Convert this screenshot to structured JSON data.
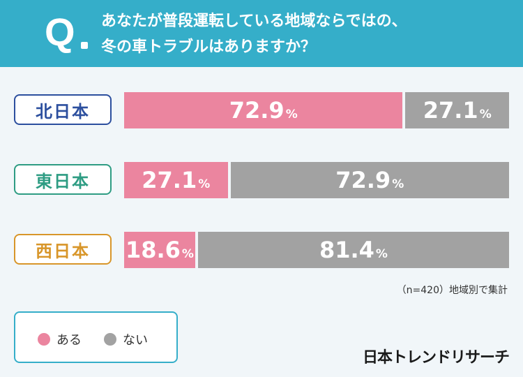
{
  "header": {
    "q_mark": "Q",
    "question_line1": "あなたが普段運転している地域ならではの、",
    "question_line2": "冬の車トラブルはありますか？"
  },
  "chart_data": {
    "type": "bar",
    "stacked": true,
    "orientation": "horizontal",
    "title": "あなたが普段運転している地域ならではの、冬の車トラブルはありますか？",
    "categories": [
      "北日本",
      "東日本",
      "西日本"
    ],
    "series": [
      {
        "name": "ある",
        "values": [
          72.9,
          27.1,
          18.6
        ],
        "color": "#eb859f"
      },
      {
        "name": "ない",
        "values": [
          27.1,
          72.9,
          81.4
        ],
        "color": "#a2a2a2"
      }
    ],
    "unit": "%",
    "label_colors": [
      "#2c4f9e",
      "#2e9c83",
      "#d8962a"
    ],
    "note": "（n=420）地域別で集計",
    "legend": [
      {
        "label": "ある",
        "color": "#eb859f"
      },
      {
        "label": "ない",
        "color": "#a2a2a2"
      }
    ]
  },
  "brand": "日本トレンドリサーチ",
  "accent_color": "#35aec9"
}
